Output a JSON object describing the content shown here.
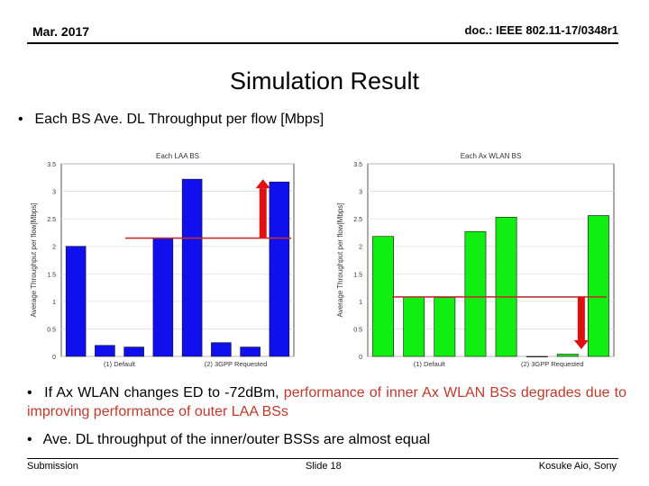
{
  "header": {
    "date": "Mar. 2017",
    "doc_id": "doc.: IEEE 802.11-17/0348r1"
  },
  "title": "Simulation Result",
  "bullets": {
    "b1": "Each BS Ave. DL Throughput per flow [Mbps]",
    "b2_prefix": "If Ax WLAN changes ED to -72dBm, ",
    "b2_red": "performance of inner Ax WLAN BSs degrades due to improving performance of outer LAA BSs",
    "b3": "Ave. DL throughput of the inner/outer BSSs are almost equal"
  },
  "footer": {
    "left": "Submission",
    "center": "Slide 18",
    "right": "Kosuke Aio, Sony"
  },
  "colors": {
    "laa": "#1010ee",
    "wlan": "#11ee11",
    "arrow": "#e01010",
    "line": "#c03030"
  },
  "chart_data": [
    {
      "type": "bar",
      "title": "Each LAA BS",
      "ylabel": "Average Throughput per flow[Mbps]",
      "ylim": [
        0,
        3.5
      ],
      "yticks": [
        "0",
        "0.5",
        "1",
        "1.5",
        "2",
        "2.5",
        "3",
        "3.5"
      ],
      "groups": [
        {
          "label": "(1) Default",
          "values": [
            2.0,
            0.2,
            0.17,
            2.15
          ]
        },
        {
          "label": "(2) 3GPP Requested",
          "values": [
            3.22,
            0.25,
            0.17,
            3.17
          ]
        }
      ],
      "reference_line": 2.15,
      "arrow": "up"
    },
    {
      "type": "bar",
      "title": "Each Ax WLAN BS",
      "ylabel": "Average Throughput per flow[Mbps]",
      "ylim": [
        0,
        3.5
      ],
      "yticks": [
        "0",
        "0.5",
        "1",
        "1.5",
        "2",
        "2.5",
        "3",
        "3.5"
      ],
      "groups": [
        {
          "label": "(1) Default",
          "values": [
            2.18,
            1.08,
            1.07,
            2.27
          ]
        },
        {
          "label": "(2) 3GPP Requested",
          "values": [
            2.53,
            0.0,
            0.04,
            2.56
          ]
        }
      ],
      "reference_line": 1.08,
      "arrow": "down"
    }
  ]
}
